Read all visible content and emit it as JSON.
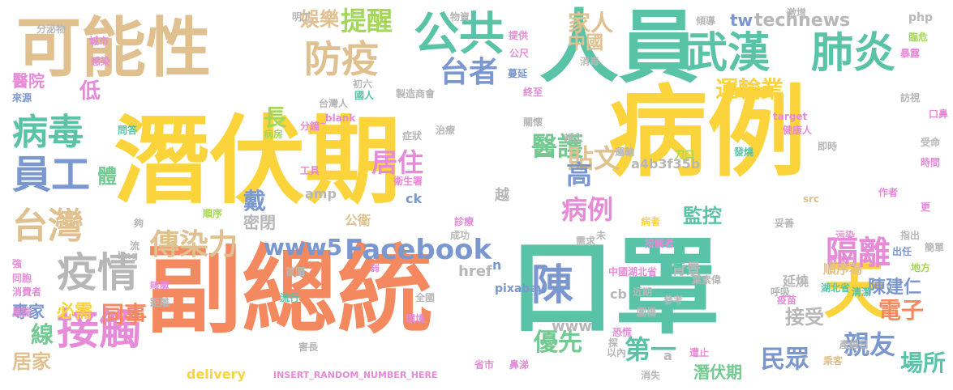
{
  "colors": {
    "yellow": "#fbd33a",
    "orange": "#f4885f",
    "tan": "#e0c08e",
    "green": "#72c992",
    "teal": "#59c3a8",
    "blue": "#7b97cf",
    "pink": "#e58bd7",
    "olive": "#a3d755",
    "grey": "#b7b7b7"
  },
  "words": [
    {
      "text": "潛伏期"
    },
    {
      "text": "病例"
    },
    {
      "text": "副總統"
    },
    {
      "text": "口罩"
    },
    {
      "text": "人員"
    },
    {
      "text": "可能性"
    },
    {
      "text": "天"
    },
    {
      "text": "武漢"
    },
    {
      "text": "肺炎"
    },
    {
      "text": "公共"
    },
    {
      "text": "防疫"
    },
    {
      "text": "提醒"
    },
    {
      "text": "娛樂"
    },
    {
      "text": "家人"
    },
    {
      "text": "technews"
    },
    {
      "text": "病毒"
    },
    {
      "text": "員工"
    },
    {
      "text": "台灣"
    },
    {
      "text": "疫情"
    },
    {
      "text": "接觸"
    },
    {
      "text": "傳染力"
    },
    {
      "text": "陳"
    },
    {
      "text": "Facebook"
    },
    {
      "text": "www5"
    },
    {
      "text": "隔離"
    },
    {
      "text": "台者"
    },
    {
      "text": "醫護"
    },
    {
      "text": "運輸業"
    },
    {
      "text": "居住"
    },
    {
      "text": "貼文"
    },
    {
      "text": "病例"
    },
    {
      "text": "高"
    },
    {
      "text": "監控"
    },
    {
      "text": "優先"
    },
    {
      "text": "第一"
    },
    {
      "text": "親友"
    },
    {
      "text": "民眾"
    },
    {
      "text": "電子"
    },
    {
      "text": "陳建仁"
    },
    {
      "text": "接受"
    },
    {
      "text": "場所"
    },
    {
      "text": "必需"
    },
    {
      "text": "同事"
    },
    {
      "text": "線"
    },
    {
      "text": "居家"
    },
    {
      "text": "專家"
    },
    {
      "text": "醫院"
    },
    {
      "text": "低"
    },
    {
      "text": "長"
    },
    {
      "text": "戴"
    },
    {
      "text": "體"
    },
    {
      "text": "密閉"
    },
    {
      "text": "中國"
    },
    {
      "text": "tw"
    },
    {
      "text": "php"
    },
    {
      "text": "順序為"
    },
    {
      "text": "a4b3f35b"
    },
    {
      "text": "延燒"
    },
    {
      "text": "背景"
    },
    {
      "text": "潛伏期"
    },
    {
      "text": "www"
    },
    {
      "text": "href"
    },
    {
      "text": "delivery"
    },
    {
      "text": "INSERT_RANDOM_NUMBER_HERE"
    },
    {
      "text": "越"
    },
    {
      "text": "公衛"
    },
    {
      "text": "ck"
    },
    {
      "text": "amp"
    },
    {
      "text": "cb"
    },
    {
      "text": "a"
    },
    {
      "text": "n"
    },
    {
      "text": "pixabay"
    },
    {
      "text": "分泌物"
    },
    {
      "text": "明工"
    },
    {
      "text": "物資"
    },
    {
      "text": "傾導"
    },
    {
      "text": "激增"
    },
    {
      "text": "臨危"
    },
    {
      "text": "暴露"
    },
    {
      "text": "城市"
    },
    {
      "text": "感染"
    },
    {
      "text": "提供"
    },
    {
      "text": "公尺"
    },
    {
      "text": "蔓延"
    },
    {
      "text": "消毒"
    },
    {
      "text": "終至"
    },
    {
      "text": "製造商會"
    },
    {
      "text": "國人"
    },
    {
      "text": "台灣人"
    },
    {
      "text": "_blank"
    },
    {
      "text": "症狀"
    },
    {
      "text": "治療"
    },
    {
      "text": "關懷"
    },
    {
      "text": "趕工"
    },
    {
      "text": "運輸"
    },
    {
      "text": "刀口"
    },
    {
      "text": "發燒"
    },
    {
      "text": "target"
    },
    {
      "text": "健康人"
    },
    {
      "text": "訪視"
    },
    {
      "text": "口鼻"
    },
    {
      "text": "來源"
    },
    {
      "text": "問答"
    },
    {
      "text": "病房"
    },
    {
      "text": "分鐘"
    },
    {
      "text": "工具"
    },
    {
      "text": "衛生署"
    },
    {
      "text": "順序"
    },
    {
      "text": "即時"
    },
    {
      "text": "作者"
    },
    {
      "text": "受命"
    },
    {
      "text": "時間"
    },
    {
      "text": "更"
    },
    {
      "text": "夠"
    },
    {
      "text": "流"
    },
    {
      "text": "診療"
    },
    {
      "text": "成功"
    },
    {
      "text": "病者"
    },
    {
      "text": "未"
    },
    {
      "text": "需求"
    },
    {
      "text": "src"
    },
    {
      "text": "妥善"
    },
    {
      "text": "接觸者"
    },
    {
      "text": "污染"
    },
    {
      "text": "指出"
    },
    {
      "text": "簡單"
    },
    {
      "text": "img"
    },
    {
      "text": "強"
    },
    {
      "text": "同胞"
    },
    {
      "text": "消費者"
    },
    {
      "text": "風險"
    },
    {
      "text": "咳嗽"
    },
    {
      "text": "首圖"
    },
    {
      "text": "弱"
    },
    {
      "text": "中國湖北省"
    },
    {
      "text": "後續"
    },
    {
      "text": "葉素偉"
    },
    {
      "text": "呼吸"
    },
    {
      "text": "飛沫"
    },
    {
      "text": "地方"
    },
    {
      "text": "出任"
    },
    {
      "text": "距離"
    },
    {
      "text": "流行"
    },
    {
      "text": "全國"
    },
    {
      "text": "近期"
    },
    {
      "text": "參考"
    },
    {
      "text": "疫苗"
    },
    {
      "text": "湖北省"
    },
    {
      "text": "圍橋"
    },
    {
      "text": "清潔"
    },
    {
      "text": "環境"
    },
    {
      "text": "恐慌"
    },
    {
      "text": "探"
    },
    {
      "text": "產線日"
    },
    {
      "text": "害長"
    },
    {
      "text": "省市"
    },
    {
      "text": "鼻涕"
    },
    {
      "text": "以內"
    },
    {
      "text": "遭止"
    },
    {
      "text": "消失"
    },
    {
      "text": "乘客"
    },
    {
      "text": "初六"
    },
    {
      "text": "近"
    }
  ]
}
